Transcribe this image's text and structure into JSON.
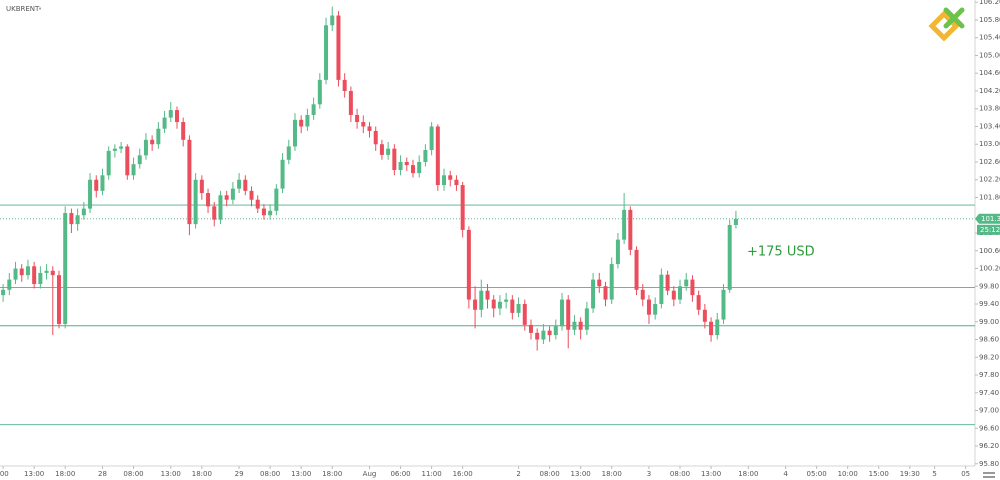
{
  "chart_data": {
    "type": "candlestick",
    "title": "UKBRENT",
    "annotation": "+175 USD",
    "countdown": "25:12",
    "last_price": 101.32,
    "levels": [
      101.63,
      99.77,
      98.91,
      96.68
    ],
    "up_color": "#53b987",
    "down_color": "#eb4d5c",
    "level_color": "#4fae8f",
    "annotation_color": "#2e9a3a",
    "ylim": [
      95.75,
      106.25
    ],
    "yticks": [
      {
        "value": 95.8,
        "label": "95.80"
      },
      {
        "value": 96.2,
        "label": "96.20"
      },
      {
        "value": 96.6,
        "label": "96.60"
      },
      {
        "value": 97.0,
        "label": "97.00"
      },
      {
        "value": 97.4,
        "label": "97.40"
      },
      {
        "value": 97.8,
        "label": "97.80"
      },
      {
        "value": 98.2,
        "label": "98.20"
      },
      {
        "value": 98.6,
        "label": "98.60"
      },
      {
        "value": 99.0,
        "label": "99.00"
      },
      {
        "value": 99.4,
        "label": "99.40"
      },
      {
        "value": 99.8,
        "label": "99.80"
      },
      {
        "value": 100.2,
        "label": "100.20"
      },
      {
        "value": 100.6,
        "label": "100.60"
      },
      {
        "value": 101.0,
        "label": "101.00"
      },
      {
        "value": 101.8,
        "label": "101.80"
      },
      {
        "value": 102.2,
        "label": "102.20"
      },
      {
        "value": 102.6,
        "label": "102.60"
      },
      {
        "value": 103.0,
        "label": "103.00"
      },
      {
        "value": 103.4,
        "label": "103.40"
      },
      {
        "value": 103.8,
        "label": "103.80"
      },
      {
        "value": 104.2,
        "label": "104.20"
      },
      {
        "value": 104.6,
        "label": "104.60"
      },
      {
        "value": 105.0,
        "label": "105.00"
      },
      {
        "value": 105.4,
        "label": "105.40"
      },
      {
        "value": 105.8,
        "label": "105.80"
      },
      {
        "value": 106.2,
        "label": "106.20"
      }
    ],
    "xlim": [
      -0.5,
      156.5
    ],
    "xticks": [
      {
        "value": 0,
        "label": ":00"
      },
      {
        "value": 5,
        "label": "13:00"
      },
      {
        "value": 10,
        "label": "18:00"
      },
      {
        "value": 16,
        "label": "28"
      },
      {
        "value": 21,
        "label": "08:00"
      },
      {
        "value": 27,
        "label": "13:00"
      },
      {
        "value": 32,
        "label": "18:00"
      },
      {
        "value": 38,
        "label": "29"
      },
      {
        "value": 43,
        "label": "08:00"
      },
      {
        "value": 48,
        "label": "13:00"
      },
      {
        "value": 53,
        "label": "18:00"
      },
      {
        "value": 59,
        "label": "Aug"
      },
      {
        "value": 64,
        "label": "06:00"
      },
      {
        "value": 69,
        "label": "11:00"
      },
      {
        "value": 74,
        "label": "16:00"
      },
      {
        "value": 83,
        "label": "2"
      },
      {
        "value": 88,
        "label": "08:00"
      },
      {
        "value": 93,
        "label": "13:00"
      },
      {
        "value": 98,
        "label": "18:00"
      },
      {
        "value": 104,
        "label": "3"
      },
      {
        "value": 109,
        "label": "08:00"
      },
      {
        "value": 114,
        "label": "13:00"
      },
      {
        "value": 120,
        "label": "18:00"
      },
      {
        "value": 126,
        "label": "4"
      },
      {
        "value": 131,
        "label": "05:00"
      },
      {
        "value": 136,
        "label": "10:00"
      },
      {
        "value": 141,
        "label": "15:00"
      },
      {
        "value": 146,
        "label": "19:30"
      },
      {
        "value": 150,
        "label": "5"
      },
      {
        "value": 155,
        "label": "05"
      }
    ],
    "open": [
      99.6,
      99.72,
      99.95,
      100.2,
      100.05,
      100.25,
      99.85,
      100.1,
      100.15,
      100.05,
      98.95,
      101.45,
      101.2,
      101.4,
      101.55,
      102.2,
      101.95,
      102.3,
      102.85,
      102.9,
      102.95,
      102.3,
      102.55,
      102.75,
      103.1,
      103.0,
      103.35,
      103.6,
      103.77,
      103.5,
      103.1,
      101.2,
      102.2,
      101.9,
      101.6,
      101.3,
      101.85,
      101.75,
      102.0,
      102.2,
      101.95,
      101.75,
      101.55,
      101.4,
      101.5,
      102.0,
      102.65,
      102.95,
      103.55,
      103.4,
      103.66,
      103.9,
      104.45,
      105.68,
      105.9,
      104.45,
      104.2,
      103.66,
      103.5,
      103.4,
      103.3,
      103.0,
      102.76,
      102.9,
      102.42,
      102.6,
      102.53,
      102.35,
      102.6,
      102.87,
      103.4,
      102.08,
      102.3,
      102.2,
      102.08,
      101.07,
      99.5,
      99.27,
      99.7,
      99.5,
      99.3,
      99.45,
      99.5,
      99.2,
      99.4,
      98.93,
      98.75,
      98.6,
      98.8,
      98.7,
      98.9,
      99.5,
      98.82,
      99.0,
      98.82,
      99.3,
      99.95,
      99.8,
      99.5,
      100.3,
      100.85,
      101.52,
      100.62,
      99.72,
      99.5,
      99.16,
      99.4,
      100.06,
      99.7,
      99.5,
      99.8,
      99.95,
      99.6,
      99.27,
      99.0,
      98.7,
      99.05,
      99.72,
      101.18
    ],
    "high": [
      99.85,
      100.1,
      100.35,
      100.3,
      100.4,
      100.35,
      100.25,
      100.3,
      100.25,
      100.15,
      101.6,
      101.55,
      101.55,
      101.7,
      102.35,
      102.3,
      102.45,
      102.95,
      103.0,
      103.05,
      103.0,
      102.7,
      102.9,
      103.25,
      103.2,
      103.5,
      103.75,
      103.95,
      103.85,
      103.6,
      103.2,
      102.35,
      102.3,
      102.0,
      101.7,
      101.95,
      101.95,
      102.15,
      102.35,
      102.3,
      102.05,
      101.85,
      101.65,
      101.65,
      102.1,
      102.8,
      103.1,
      103.7,
      103.65,
      103.8,
      104.05,
      104.6,
      105.85,
      106.1,
      106.0,
      104.6,
      104.3,
      103.8,
      103.65,
      103.5,
      103.4,
      103.1,
      103.05,
      103.0,
      102.75,
      102.7,
      102.65,
      102.75,
      103.0,
      103.5,
      103.45,
      102.45,
      102.4,
      102.3,
      102.15,
      101.15,
      99.8,
      99.95,
      99.85,
      99.6,
      99.6,
      99.65,
      99.6,
      99.55,
      99.5,
      99.05,
      98.85,
      98.95,
      98.9,
      99.05,
      99.65,
      99.6,
      99.15,
      99.1,
      99.45,
      100.1,
      100.1,
      99.9,
      100.45,
      101.0,
      101.9,
      101.6,
      100.7,
      99.85,
      99.6,
      99.55,
      100.2,
      100.15,
      99.8,
      99.95,
      100.1,
      100.05,
      99.7,
      99.4,
      99.1,
      99.2,
      99.85,
      101.3,
      101.5
    ],
    "low": [
      99.45,
      99.6,
      99.85,
      99.9,
      99.95,
      99.75,
      99.75,
      99.95,
      98.7,
      98.85,
      98.85,
      101.0,
      101.05,
      101.3,
      101.45,
      101.8,
      101.85,
      102.2,
      102.7,
      102.8,
      102.2,
      102.2,
      102.45,
      102.65,
      102.85,
      102.9,
      103.25,
      103.5,
      103.35,
      102.95,
      100.95,
      101.1,
      101.75,
      101.45,
      101.15,
      101.2,
      101.6,
      101.65,
      101.9,
      101.85,
      101.6,
      101.45,
      101.3,
      101.3,
      101.4,
      101.9,
      102.55,
      102.85,
      103.25,
      103.3,
      103.55,
      103.8,
      104.35,
      105.55,
      104.3,
      104.05,
      103.5,
      103.35,
      103.25,
      103.15,
      102.85,
      102.65,
      102.65,
      102.3,
      102.3,
      102.4,
      102.25,
      102.25,
      102.5,
      102.75,
      101.95,
      101.95,
      102.05,
      101.95,
      100.9,
      99.3,
      98.85,
      99.1,
      99.3,
      99.1,
      99.15,
      99.3,
      99.05,
      99.1,
      98.8,
      98.6,
      98.35,
      98.5,
      98.55,
      98.6,
      98.8,
      98.4,
      98.7,
      98.6,
      98.7,
      99.2,
      99.65,
      99.35,
      99.4,
      100.2,
      100.75,
      100.5,
      99.6,
      99.35,
      98.95,
      99.05,
      99.3,
      99.6,
      99.35,
      99.4,
      99.7,
      99.45,
      99.15,
      98.85,
      98.55,
      98.6,
      98.95,
      99.65,
      101.1
    ],
    "close": [
      99.72,
      99.95,
      100.2,
      100.05,
      100.25,
      99.85,
      100.1,
      100.15,
      100.05,
      98.95,
      101.45,
      101.2,
      101.4,
      101.55,
      102.2,
      101.95,
      102.3,
      102.85,
      102.9,
      102.95,
      102.3,
      102.55,
      102.75,
      103.1,
      103.0,
      103.35,
      103.6,
      103.77,
      103.5,
      103.1,
      101.2,
      102.2,
      101.9,
      101.6,
      101.3,
      101.85,
      101.75,
      102.0,
      102.2,
      101.95,
      101.75,
      101.55,
      101.4,
      101.5,
      102.0,
      102.65,
      102.95,
      103.55,
      103.4,
      103.66,
      103.9,
      104.45,
      105.68,
      105.9,
      104.45,
      104.2,
      103.66,
      103.5,
      103.4,
      103.3,
      103.0,
      102.76,
      102.9,
      102.42,
      102.6,
      102.53,
      102.35,
      102.6,
      102.87,
      103.4,
      102.08,
      102.3,
      102.2,
      102.08,
      101.07,
      99.5,
      99.27,
      99.7,
      99.5,
      99.3,
      99.45,
      99.5,
      99.2,
      99.4,
      98.93,
      98.75,
      98.6,
      98.8,
      98.7,
      98.9,
      99.5,
      98.82,
      99.0,
      98.82,
      99.3,
      99.95,
      99.8,
      99.5,
      100.3,
      100.85,
      101.52,
      100.62,
      99.72,
      99.5,
      99.16,
      99.4,
      100.06,
      99.7,
      99.5,
      99.8,
      99.95,
      99.6,
      99.27,
      99.0,
      98.7,
      99.05,
      99.72,
      101.18,
      101.32
    ]
  }
}
